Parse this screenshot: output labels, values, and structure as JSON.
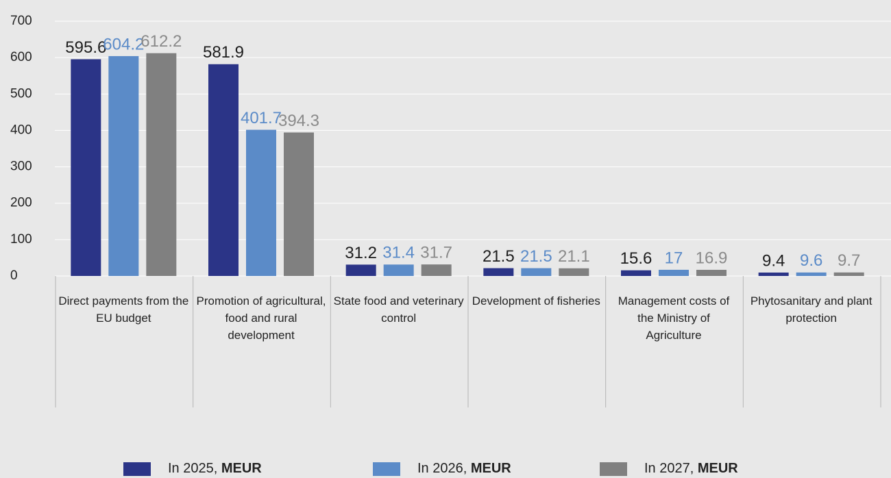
{
  "chart_data": {
    "type": "bar",
    "categories": [
      "Direct payments from the EU budget",
      "Promotion of agricultural, food and rural development",
      "State food and veterinary control",
      "Development of fisheries",
      "Management costs of the Ministry of Agriculture",
      "Phytosanitary and plant protection"
    ],
    "series": [
      {
        "name": "In 2025, MEUR",
        "color": "#2b3487",
        "label_color": "#1e1e1e",
        "values": [
          595.6,
          581.9,
          31.2,
          21.5,
          15.6,
          9.4
        ]
      },
      {
        "name": "In 2026, MEUR",
        "color": "#5b8bc8",
        "label_color": "#5b8bc8",
        "values": [
          604.2,
          401.7,
          31.4,
          21.5,
          17,
          9.6
        ]
      },
      {
        "name": "In 2027, MEUR",
        "color": "#808080",
        "label_color": "#8a8a8a",
        "values": [
          612.2,
          394.3,
          31.7,
          21.1,
          16.9,
          9.7
        ]
      }
    ],
    "ylim": [
      0,
      700
    ],
    "yticks": [
      0,
      100,
      200,
      300,
      400,
      500,
      600,
      700
    ],
    "grid": true
  }
}
